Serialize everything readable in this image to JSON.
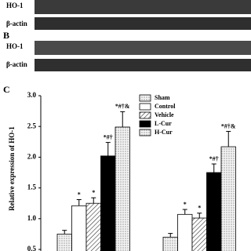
{
  "blot_a": {
    "labels": [
      "HO-1",
      "β-actin"
    ]
  },
  "blot_b": {
    "letter": "B",
    "labels": [
      "HO-1",
      "β-actin"
    ]
  },
  "chart_data": {
    "type": "bar",
    "panel_label": "C",
    "y_label": "Relative expression of HO-1",
    "categories": [
      null,
      null
    ],
    "ylim": [
      0.5,
      3.0
    ],
    "yticks": [
      0.5,
      {
        "value": 1.0,
        "label": "1.0"
      },
      1.5,
      {
        "value": 2.0,
        "label": "2.0"
      },
      2.5,
      {
        "value": 3.0,
        "label": "3.0"
      }
    ],
    "legend": "top-right",
    "series": [
      {
        "name": "Sham",
        "color": "#e8e8e8",
        "pattern": "dots",
        "values": [
          0.75,
          0.7
        ],
        "errors": [
          0.06,
          0.06
        ],
        "annotations": [
          null,
          null
        ]
      },
      {
        "name": "Control",
        "color": "#ffffff",
        "pattern": "none",
        "values": [
          1.21,
          1.07
        ],
        "errors": [
          0.1,
          0.08
        ],
        "annotations": [
          "*",
          "*"
        ]
      },
      {
        "name": "Vehicle",
        "color": "#ffffff",
        "pattern": "hatch",
        "values": [
          1.25,
          1.01
        ],
        "errors": [
          0.09,
          0.08
        ],
        "annotations": [
          "*",
          "*"
        ]
      },
      {
        "name": "L-Cur",
        "color": "#000000",
        "pattern": "none",
        "values": [
          2.02,
          1.75
        ],
        "errors": [
          0.22,
          0.14
        ],
        "annotations": [
          "*#†",
          "*#†"
        ]
      },
      {
        "name": "H-Cur",
        "color": "#f2f2f2",
        "pattern": "dots",
        "values": [
          2.49,
          2.17
        ],
        "errors": [
          0.25,
          0.25
        ],
        "annotations": [
          "*#†&",
          "*#†&"
        ]
      }
    ]
  }
}
